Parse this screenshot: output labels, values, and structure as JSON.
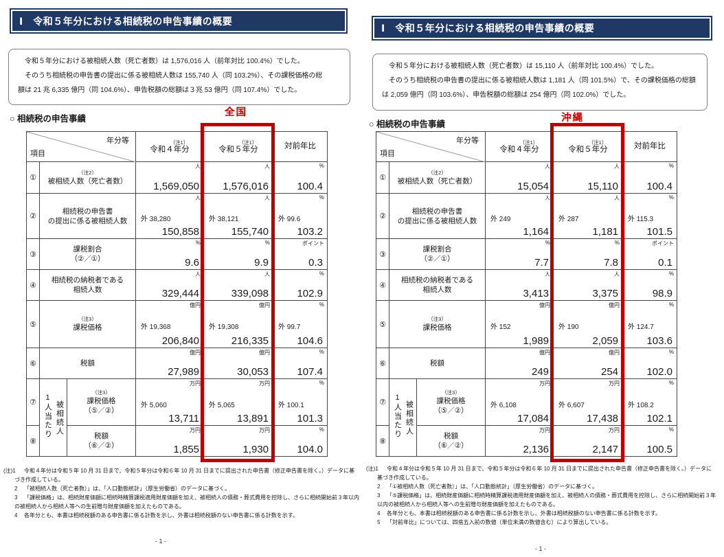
{
  "colors": {
    "navy": "#1f3864",
    "highlight_red": "#c00000",
    "box_border": "#7f7f7f",
    "table_border": "#444444"
  },
  "header_title": "Ⅰ　令和５年分における相続税の申告事績の概要",
  "section_heading": "○ 相続税の申告事績",
  "table_header": {
    "corner_top": "年分等",
    "corner_bottom": "項目",
    "note": "（注1）",
    "col_prev": "令和４年分",
    "col_curr": "令和５年分",
    "col_ratio": "対前年比"
  },
  "vertical_group_label": [
    "被相続人",
    "1人当たり"
  ],
  "pages": [
    {
      "region": "全国",
      "page_number": "- 1 -",
      "summary_lines": [
        "　令和５年分における被相続人数（死亡者数）は 1,576,016 人（前年対比 100.4%）でした。",
        "　そのうち相続税の申告書の提出に係る被相続人数は 155,740 人（同 103.2%）、その課税価格の総",
        "額は 21 兆 6,335 億円（同 104.6%）、申告税額の総額は３兆 53 億円（同 107.4%）でした。"
      ],
      "rows": [
        {
          "num": "①",
          "sup": "（注2）",
          "label": [
            "被相続人数（死亡者数）"
          ],
          "units": [
            "人",
            "人",
            "%"
          ],
          "subs": null,
          "values": [
            "1,569,050",
            "1,576,016",
            "100.4"
          ]
        },
        {
          "num": "②",
          "sup": null,
          "label": [
            "相続税の申告書",
            "の提出に係る被相続人数"
          ],
          "units": [
            "人",
            "人",
            "%"
          ],
          "subs": [
            "外 38,280",
            "外 38,121",
            "外 99.6"
          ],
          "values": [
            "150,858",
            "155,740",
            "103.2"
          ]
        },
        {
          "num": "③",
          "sup": null,
          "label": [
            "課税割合",
            "（②／①）"
          ],
          "units": [
            "%",
            "%",
            "ポイント"
          ],
          "subs": null,
          "values": [
            "9.6",
            "9.9",
            "0.3"
          ]
        },
        {
          "num": "④",
          "sup": null,
          "label": [
            "相続税の納税者である",
            "相続人数"
          ],
          "units": [
            "人",
            "人",
            "%"
          ],
          "subs": null,
          "values": [
            "329,444",
            "339,098",
            "102.9"
          ]
        },
        {
          "num": "⑤",
          "sup": "（注3）",
          "label": [
            "課税価格"
          ],
          "units": [
            "億円",
            "億円",
            "%"
          ],
          "subs": [
            "外 19,368",
            "外 19,308",
            "外 99.7"
          ],
          "values": [
            "206,840",
            "216,335",
            "104.6"
          ]
        },
        {
          "num": "⑥",
          "sup": null,
          "label": [
            "税額"
          ],
          "units": [
            "億円",
            "億円",
            "%"
          ],
          "subs": null,
          "values": [
            "27,989",
            "30,053",
            "107.4"
          ]
        },
        {
          "num": "⑦",
          "sup": "（注3）",
          "label": [
            "課税価格",
            "（⑤／②）"
          ],
          "units": [
            "万円",
            "万円",
            "%"
          ],
          "subs": [
            "外 5,060",
            "外 5,065",
            "外 100.1"
          ],
          "values": [
            "13,711",
            "13,891",
            "101.3"
          ],
          "group": true
        },
        {
          "num": "⑧",
          "sup": null,
          "label": [
            "税額",
            "（⑥／②）"
          ],
          "units": [
            "万円",
            "万円",
            "%"
          ],
          "subs": null,
          "values": [
            "1,855",
            "1,930",
            "104.0"
          ]
        }
      ],
      "footnotes": [
        {
          "label": "(注)1",
          "text": "令和４年分は令和５年 10 月 31 日まで、令和５年分は令和６年 10 月 31 日までに提出された申告書（修正申告書を除く。）データに基"
        },
        {
          "label": "",
          "text": "づき作成している。"
        },
        {
          "label": "2",
          "text": "「被相続人数（死亡者数）」は、「人口動態統計」（厚生労働省）のデータに基づく。"
        },
        {
          "label": "3",
          "text": "「課税価格」は、相続財産価額に相続時精算課税適用財産価額を加え、被相続人の債務・葬式費用を控除し、さらに相続開始前３年以内"
        },
        {
          "label": "",
          "text": "の被相続人から相続人等への生前贈与財産価額を加えたものである。"
        },
        {
          "label": "4",
          "text": "各年分とも、本書は相続税額のある申告書に係る計数を示し、外書は相続税額のない申告書に係る計数を示す。"
        }
      ]
    },
    {
      "region": "沖縄",
      "page_number": "- 1 -",
      "summary_lines": [
        "　令和５年分における被相続人数（死亡者数）は 15,110 人（前年対比 100.4%）でした。",
        "　そのうち相続税の申告書の提出に係る被相続人数は 1,181 人（同 101.5%）で、その課税価格の総額",
        "は 2,059 億円（同 103.6%）、申告税額の総額は 254 億円（同 102.0%）でした。"
      ],
      "rows": [
        {
          "num": "①",
          "sup": "（注2）",
          "label": [
            "被相続人数（死亡者数）"
          ],
          "units": [
            "人",
            "人",
            "%"
          ],
          "subs": null,
          "values": [
            "15,054",
            "15,110",
            "100.4"
          ]
        },
        {
          "num": "②",
          "sup": null,
          "label": [
            "相続税の申告書",
            "の提出に係る被相続人数"
          ],
          "units": [
            "人",
            "人",
            "%"
          ],
          "subs": [
            "外 249",
            "外 287",
            "外 115.3"
          ],
          "values": [
            "1,164",
            "1,181",
            "101.5"
          ]
        },
        {
          "num": "③",
          "sup": null,
          "label": [
            "課税割合",
            "（②／①）"
          ],
          "units": [
            "%",
            "%",
            "ポイント"
          ],
          "subs": null,
          "values": [
            "7.7",
            "7.8",
            "0.1"
          ]
        },
        {
          "num": "④",
          "sup": null,
          "label": [
            "相続税の納税者である",
            "相続人数"
          ],
          "units": [
            "人",
            "人",
            "%"
          ],
          "subs": null,
          "values": [
            "3,413",
            "3,375",
            "98.9"
          ]
        },
        {
          "num": "⑤",
          "sup": "（注3）",
          "label": [
            "課税価格"
          ],
          "units": [
            "億円",
            "億円",
            "%"
          ],
          "subs": [
            "外 152",
            "外 190",
            "外 124.7"
          ],
          "values": [
            "1,989",
            "2,059",
            "103.6"
          ]
        },
        {
          "num": "⑥",
          "sup": null,
          "label": [
            "税額"
          ],
          "units": [
            "億円",
            "億円",
            "%"
          ],
          "subs": null,
          "values": [
            "249",
            "254",
            "102.0"
          ]
        },
        {
          "num": "⑦",
          "sup": "（注3）",
          "label": [
            "課税価格",
            "（⑤／②）"
          ],
          "units": [
            "万円",
            "万円",
            "%"
          ],
          "subs": [
            "外 6,108",
            "外 6,607",
            "外 108.2"
          ],
          "values": [
            "17,084",
            "17,438",
            "102.1"
          ],
          "group": true
        },
        {
          "num": "⑧",
          "sup": null,
          "label": [
            "税額",
            "（⑥／②）"
          ],
          "units": [
            "万円",
            "万円",
            "%"
          ],
          "subs": null,
          "values": [
            "2,136",
            "2,147",
            "100.5"
          ]
        }
      ],
      "footnotes": [
        {
          "label": "(注)1",
          "text": "令和４年分は令和５年 10 月 31 日まで、令和５年分は令和６年 10 月 31 日までに提出された申告書（修正申告書を除く。）データに"
        },
        {
          "label": "",
          "text": "基づき作成している。"
        },
        {
          "label": "2",
          "text": "「①被相続人数（死亡者数）」は、「人口動態統計」（厚生労働省）のデータに基づく。"
        },
        {
          "label": "3",
          "text": "「⑤課税価格」は、相続財産価額に相続時精算課税適用財産価額を加え、被相続人の債務・葬式費用を控除し、さらに相続開始前３年"
        },
        {
          "label": "",
          "text": "以内の被相続人から相続人等への生前贈与財産価額を加えたものである。"
        },
        {
          "label": "4",
          "text": "各年分とも、本書は相続税額のある申告書に係る計数を示し、外書は相続税額のない申告書に係る計数を示す。"
        },
        {
          "label": "5",
          "text": "「対前年比」については、四捨五入前の数値（単位未満の数値含む）により算出している。"
        }
      ]
    }
  ]
}
